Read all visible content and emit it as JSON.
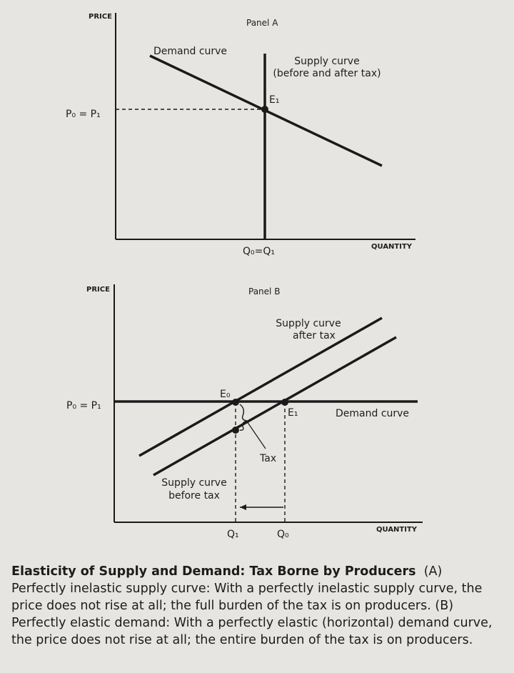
{
  "panel_a": {
    "title": "Panel A",
    "y_axis_label": "PRICE",
    "x_axis_label": "QUANTITY",
    "demand_label": "Demand curve",
    "supply_label_line1": "Supply curve",
    "supply_label_line2": "(before and after tax)",
    "equilibrium_label": "E₁",
    "price_label": "P₀ = P₁",
    "quantity_label": "Q₀=Q₁"
  },
  "panel_b": {
    "title": "Panel B",
    "y_axis_label": "PRICE",
    "x_axis_label": "QUANTITY",
    "supply_after_line1": "Supply curve",
    "supply_after_line2": "after tax",
    "e0_label": "E₀",
    "e1_label": "E₁",
    "price_label": "P₀ = P₁",
    "demand_label": "Demand curve",
    "tax_label": "Tax",
    "supply_before_line1": "Supply curve",
    "supply_before_line2": "before tax",
    "q1_label": "Q₁",
    "q0_label": "Q₀"
  },
  "caption": {
    "title": "Elasticity of Supply and Demand: Tax Borne by Producers",
    "text": "(A) Perfectly inelastic supply curve: With a perfectly inelastic supply curve, the price does not rise at all; the full burden of the tax is on producers. (B) Perfectly elastic demand: With a perfectly elastic (horizontal) demand curve, the price does not rise at all; the entire burden of the tax is on producers."
  }
}
